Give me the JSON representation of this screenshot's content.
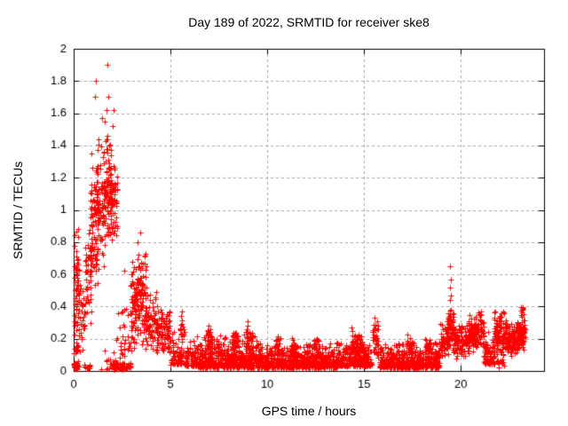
{
  "chart": {
    "title": "Day 189 of 2022, SRMTID for receiver ske8",
    "xlabel": "GPS time / hours",
    "ylabel": "SRMTID / TECUs"
  },
  "chart_data": {
    "type": "scatter",
    "title": "Day 189 of 2022, SRMTID for receiver ske8",
    "xlabel": "GPS time / hours",
    "ylabel": "SRMTID / TECUs",
    "series_name": "SRMTID",
    "xlim": [
      0,
      24.3
    ],
    "ylim": [
      0,
      2
    ],
    "xticks": {
      "values": [
        0,
        5,
        10,
        15,
        20
      ],
      "labels": [
        "0",
        "5",
        "10",
        "15",
        "20"
      ]
    },
    "yticks": {
      "values": [
        0,
        0.2,
        0.4,
        0.6,
        0.8,
        1,
        1.2,
        1.4,
        1.6,
        1.8,
        2
      ],
      "labels": [
        "0",
        "0.2",
        "0.4",
        "0.6",
        "0.8",
        "1",
        "1.2",
        "1.4",
        "1.6",
        "1.8",
        "2"
      ]
    },
    "grid": true,
    "legend": "none",
    "marker": {
      "shape": "plus",
      "color": "#ff0000",
      "size": 7
    },
    "colors": {
      "grid": "#a8a8a8",
      "axis": "#000000",
      "background": "#ffffff",
      "text": "#000000"
    },
    "summary": "Dense scatter of SRMTID values vs GPS time. Large activity burst hours 0-2.3 peaking at 1.9 TECUs near hour 1.7, near-zero run hours 2-3, secondary bump hours 3-5 up to ~0.86, quiet noisy baseline 0.02-0.25 from hours 5-19 with small bumps, spike to ~0.65 near hour 19.4, elevated band 0.1-0.4 from hours 19.5 to 23.3 where data ends.",
    "point_clusters": [
      {
        "x0": 0.02,
        "x1": 0.28,
        "n": 60,
        "y0": 0.02,
        "y1": 0.72,
        "d": "uniform"
      },
      {
        "x0": 0.02,
        "x1": 0.3,
        "n": 14,
        "y0": 0.55,
        "y1": 0.97,
        "d": "uniform"
      },
      {
        "x0": 0.0,
        "x1": 0.2,
        "n": 25,
        "y0": 0.01,
        "y1": 0.05,
        "d": "flat"
      },
      {
        "x0": 0.28,
        "x1": 0.62,
        "n": 32,
        "y0": 0.08,
        "y1": 0.62,
        "d": "mid"
      },
      {
        "x0": 0.5,
        "x1": 0.85,
        "n": 18,
        "y0": 0.01,
        "y1": 0.04,
        "d": "flat"
      },
      {
        "x0": 0.6,
        "x1": 0.95,
        "n": 45,
        "y0": 0.25,
        "y1": 0.95,
        "d": "mid"
      },
      {
        "x0": 0.85,
        "x1": 1.25,
        "n": 85,
        "y0": 0.5,
        "y1": 1.3,
        "d": "mid"
      },
      {
        "x0": 1.2,
        "x1": 1.6,
        "n": 75,
        "y0": 0.6,
        "y1": 1.45,
        "d": "mid"
      },
      {
        "x0": 1.55,
        "x1": 1.95,
        "n": 85,
        "y0": 0.72,
        "y1": 1.5,
        "d": "mid"
      },
      {
        "x0": 1.9,
        "x1": 2.25,
        "n": 55,
        "y0": 0.72,
        "y1": 1.32,
        "d": "mid"
      },
      {
        "x0": 1.4,
        "x1": 2.2,
        "n": 24,
        "y0": 0.01,
        "y1": 0.15,
        "d": "low"
      },
      {
        "x0": 2.0,
        "x1": 2.95,
        "n": 70,
        "y0": 0.01,
        "y1": 0.05,
        "d": "flat"
      },
      {
        "x0": 2.2,
        "x1": 3.0,
        "n": 32,
        "y0": 0.08,
        "y1": 0.58,
        "d": "low"
      },
      {
        "x0": 2.95,
        "x1": 3.35,
        "n": 65,
        "y0": 0.12,
        "y1": 0.72,
        "d": "mid"
      },
      {
        "x0": 3.3,
        "x1": 3.75,
        "n": 85,
        "y0": 0.15,
        "y1": 0.78,
        "d": "mid"
      },
      {
        "x0": 3.7,
        "x1": 4.35,
        "n": 80,
        "y0": 0.1,
        "y1": 0.52,
        "d": "mid"
      },
      {
        "x0": 4.3,
        "x1": 5.0,
        "n": 80,
        "y0": 0.07,
        "y1": 0.43,
        "d": "mid"
      },
      {
        "x0": 5.0,
        "x1": 5.65,
        "n": 70,
        "y0": 0.04,
        "y1": 0.3,
        "d": "low"
      },
      {
        "x0": 5.5,
        "x1": 5.72,
        "n": 14,
        "y0": 0.15,
        "y1": 0.37,
        "d": "mid"
      },
      {
        "x0": 5.7,
        "x1": 6.4,
        "n": 80,
        "y0": 0.03,
        "y1": 0.24,
        "d": "low"
      },
      {
        "x0": 6.4,
        "x1": 9.6,
        "n": 520,
        "y0": 0.02,
        "y1": 0.24,
        "d": "low"
      },
      {
        "x0": 6.9,
        "x1": 7.15,
        "n": 30,
        "y0": 0.1,
        "y1": 0.29,
        "d": "mid"
      },
      {
        "x0": 8.2,
        "x1": 8.5,
        "n": 30,
        "y0": 0.1,
        "y1": 0.28,
        "d": "mid"
      },
      {
        "x0": 8.9,
        "x1": 9.3,
        "n": 35,
        "y0": 0.1,
        "y1": 0.31,
        "d": "mid"
      },
      {
        "x0": 9.6,
        "x1": 13.6,
        "n": 640,
        "y0": 0.02,
        "y1": 0.18,
        "d": "low"
      },
      {
        "x0": 10.4,
        "x1": 10.7,
        "n": 25,
        "y0": 0.08,
        "y1": 0.23,
        "d": "mid"
      },
      {
        "x0": 11.2,
        "x1": 11.5,
        "n": 25,
        "y0": 0.08,
        "y1": 0.22,
        "d": "mid"
      },
      {
        "x0": 12.4,
        "x1": 12.7,
        "n": 25,
        "y0": 0.08,
        "y1": 0.24,
        "d": "mid"
      },
      {
        "x0": 13.6,
        "x1": 15.4,
        "n": 300,
        "y0": 0.03,
        "y1": 0.2,
        "d": "low"
      },
      {
        "x0": 14.3,
        "x1": 14.9,
        "n": 45,
        "y0": 0.1,
        "y1": 0.28,
        "d": "mid"
      },
      {
        "x0": 15.45,
        "x1": 15.75,
        "n": 40,
        "y0": 0.06,
        "y1": 0.33,
        "d": "mid"
      },
      {
        "x0": 15.8,
        "x1": 18.9,
        "n": 500,
        "y0": 0.02,
        "y1": 0.19,
        "d": "low"
      },
      {
        "x0": 17.2,
        "x1": 17.5,
        "n": 25,
        "y0": 0.08,
        "y1": 0.24,
        "d": "mid"
      },
      {
        "x0": 18.1,
        "x1": 18.4,
        "n": 22,
        "y0": 0.08,
        "y1": 0.22,
        "d": "mid"
      },
      {
        "x0": 18.9,
        "x1": 19.35,
        "n": 60,
        "y0": 0.05,
        "y1": 0.3,
        "d": "mid"
      },
      {
        "x0": 19.3,
        "x1": 19.65,
        "n": 60,
        "y0": 0.12,
        "y1": 0.4,
        "d": "mid"
      },
      {
        "x0": 19.6,
        "x1": 20.4,
        "n": 110,
        "y0": 0.07,
        "y1": 0.3,
        "d": "mid"
      },
      {
        "x0": 20.4,
        "x1": 21.2,
        "n": 120,
        "y0": 0.1,
        "y1": 0.37,
        "d": "mid"
      },
      {
        "x0": 20.9,
        "x1": 21.05,
        "n": 6,
        "y0": 0.3,
        "y1": 0.4,
        "d": "mid"
      },
      {
        "x0": 21.2,
        "x1": 21.75,
        "n": 80,
        "y0": 0.04,
        "y1": 0.27,
        "d": "low"
      },
      {
        "x0": 21.7,
        "x1": 22.45,
        "n": 120,
        "y0": 0.08,
        "y1": 0.38,
        "d": "mid"
      },
      {
        "x0": 21.85,
        "x1": 22.25,
        "n": 16,
        "y0": 0.02,
        "y1": 0.07,
        "d": "flat"
      },
      {
        "x0": 22.4,
        "x1": 22.95,
        "n": 95,
        "y0": 0.07,
        "y1": 0.3,
        "d": "mid"
      },
      {
        "x0": 22.9,
        "x1": 23.35,
        "n": 80,
        "y0": 0.1,
        "y1": 0.34,
        "d": "mid"
      },
      {
        "x0": 23.05,
        "x1": 23.3,
        "n": 9,
        "y0": 0.3,
        "y1": 0.43,
        "d": "mid"
      }
    ],
    "outlier_points": [
      [
        1.15,
        1.8
      ],
      [
        1.76,
        1.9
      ],
      [
        1.12,
        1.7
      ],
      [
        1.78,
        1.7
      ],
      [
        1.7,
        1.62
      ],
      [
        2.08,
        1.62
      ],
      [
        1.45,
        1.57
      ],
      [
        2.0,
        1.52
      ],
      [
        1.62,
        1.55
      ],
      [
        1.3,
        1.44
      ],
      [
        0.9,
        1.35
      ],
      [
        3.45,
        0.86
      ],
      [
        3.3,
        0.8
      ],
      [
        2.6,
        0.62
      ],
      [
        0.05,
        0.65
      ],
      [
        0.08,
        0.5
      ],
      [
        5.6,
        0.37
      ],
      [
        15.55,
        0.33
      ],
      [
        9.0,
        0.31
      ],
      [
        19.45,
        0.65
      ],
      [
        19.47,
        0.57
      ],
      [
        19.44,
        0.52
      ],
      [
        19.5,
        0.47
      ],
      [
        19.42,
        0.44
      ]
    ]
  }
}
